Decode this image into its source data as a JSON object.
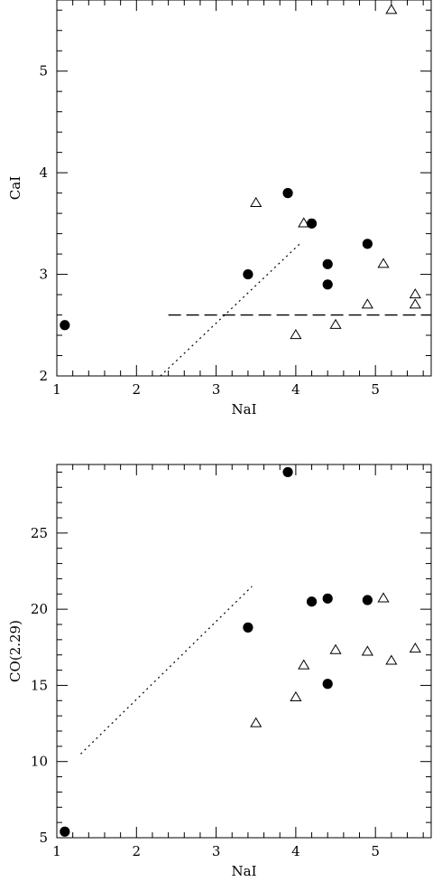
{
  "chart_data": [
    {
      "type": "scatter",
      "xlabel": "NaI",
      "ylabel": "CaI",
      "xlim": [
        1,
        5.7
      ],
      "ylim": [
        2,
        5.7
      ],
      "x_ticks": [
        1,
        2,
        3,
        4,
        5
      ],
      "y_ticks": [
        2,
        3,
        4,
        5
      ],
      "series": [
        {
          "marker": "filled-circle",
          "points": [
            [
              1.1,
              2.5
            ],
            [
              3.4,
              3.0
            ],
            [
              3.9,
              3.8
            ],
            [
              4.2,
              3.5
            ],
            [
              4.4,
              3.1
            ],
            [
              4.4,
              2.9
            ],
            [
              4.9,
              3.3
            ]
          ]
        },
        {
          "marker": "open-triangle",
          "points": [
            [
              3.5,
              3.7
            ],
            [
              4.1,
              3.5
            ],
            [
              4.0,
              2.4
            ],
            [
              4.5,
              2.5
            ],
            [
              4.9,
              2.7
            ],
            [
              5.1,
              3.1
            ],
            [
              5.2,
              5.6
            ],
            [
              5.5,
              2.8
            ],
            [
              5.5,
              2.7
            ]
          ]
        }
      ],
      "lines": [
        {
          "style": "dotted",
          "points": [
            [
              2.3,
              2.0
            ],
            [
              4.05,
              3.3
            ]
          ]
        },
        {
          "style": "dashed",
          "points": [
            [
              2.4,
              2.6
            ],
            [
              5.7,
              2.6
            ]
          ]
        }
      ]
    },
    {
      "type": "scatter",
      "xlabel": "NaI",
      "ylabel": "CO(2.29)",
      "xlim": [
        1,
        5.7
      ],
      "ylim": [
        5,
        29.5
      ],
      "x_ticks": [
        1,
        2,
        3,
        4,
        5
      ],
      "y_ticks": [
        5,
        10,
        15,
        20,
        25
      ],
      "series": [
        {
          "marker": "filled-circle",
          "points": [
            [
              1.1,
              5.4
            ],
            [
              3.4,
              18.8
            ],
            [
              3.9,
              29.0
            ],
            [
              4.2,
              20.5
            ],
            [
              4.4,
              20.7
            ],
            [
              4.4,
              15.1
            ],
            [
              4.9,
              20.6
            ]
          ]
        },
        {
          "marker": "open-triangle",
          "points": [
            [
              3.5,
              12.5
            ],
            [
              4.0,
              14.2
            ],
            [
              4.1,
              16.3
            ],
            [
              4.5,
              17.3
            ],
            [
              4.9,
              17.2
            ],
            [
              5.1,
              20.7
            ],
            [
              5.2,
              16.6
            ],
            [
              5.5,
              17.4
            ]
          ]
        }
      ],
      "lines": [
        {
          "style": "dotted",
          "points": [
            [
              1.3,
              10.5
            ],
            [
              3.45,
              21.5
            ]
          ]
        }
      ]
    }
  ]
}
